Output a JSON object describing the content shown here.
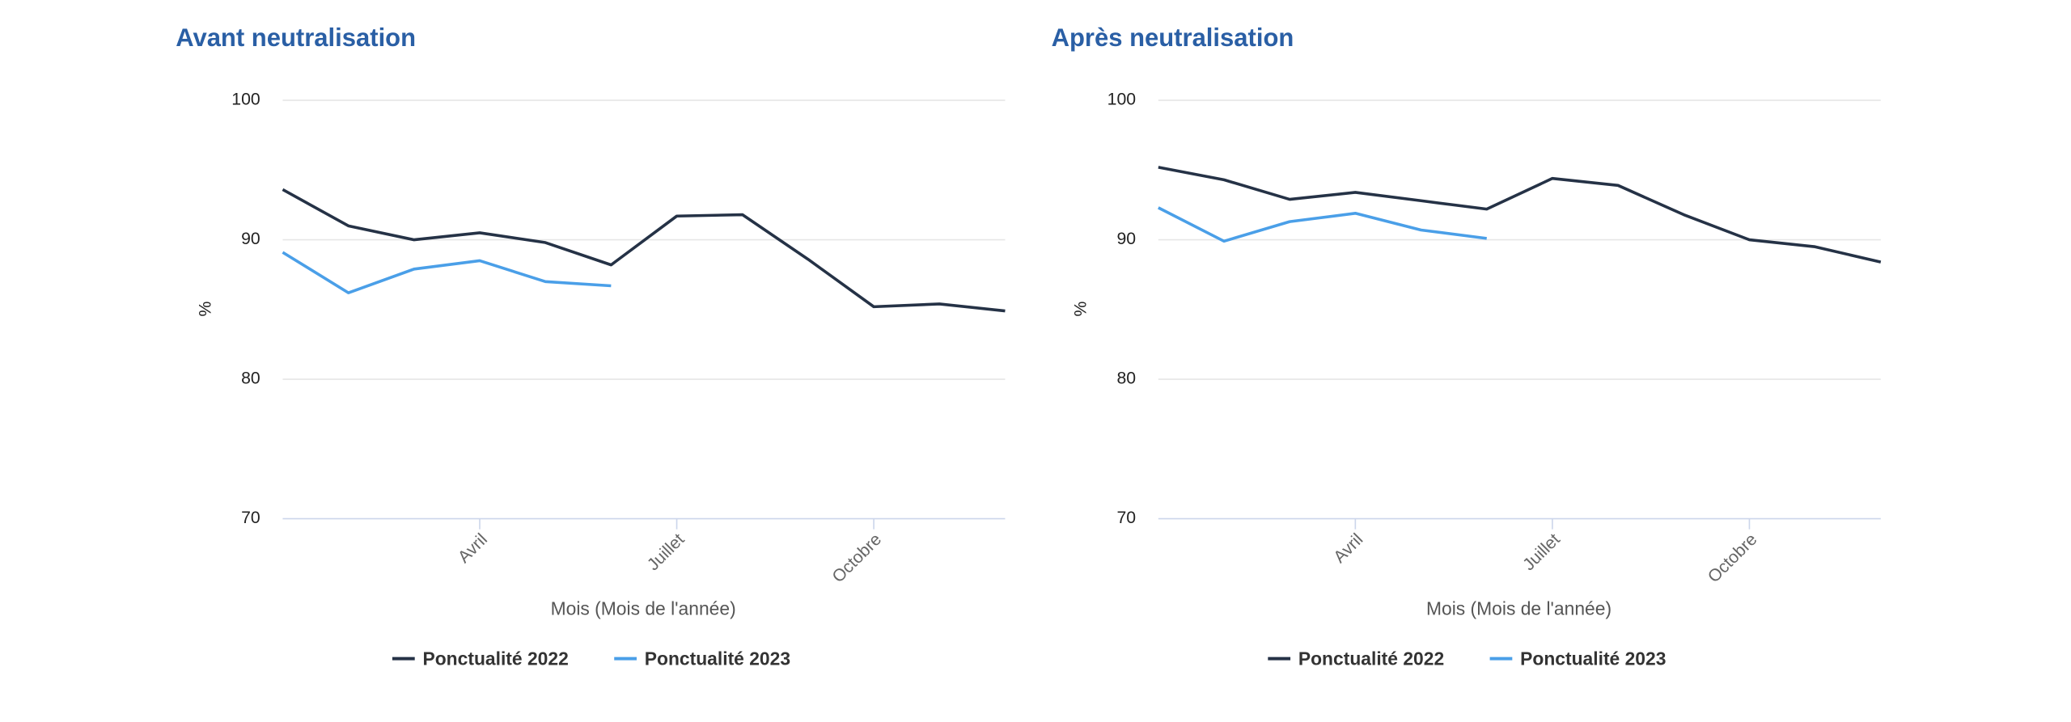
{
  "chart_data": [
    {
      "type": "line",
      "title": "Avant neutralisation",
      "y_label": "%",
      "x_label": "Mois (Mois de l'année)",
      "categories": [
        null,
        null,
        null,
        "Avril",
        null,
        null,
        "Juillet",
        null,
        null,
        "Octobre",
        null,
        null
      ],
      "series": [
        {
          "name": "Ponctualité 2022",
          "color": "#253246",
          "values": [
            93.6,
            91.0,
            90.0,
            90.5,
            89.8,
            88.2,
            91.7,
            91.8,
            88.6,
            85.2,
            85.4,
            84.9
          ]
        },
        {
          "name": "Ponctualité 2023",
          "color": "#4a9fe8",
          "values": [
            89.1,
            86.2,
            87.9,
            88.5,
            87.0,
            86.7,
            null,
            null,
            null,
            null,
            null,
            null
          ]
        }
      ],
      "ylim": [
        70,
        100
      ],
      "yticks": [
        70,
        80,
        90,
        100
      ],
      "grid": true
    },
    {
      "type": "line",
      "title": "Après neutralisation",
      "y_label": "%",
      "x_label": "Mois (Mois de l'année)",
      "categories": [
        null,
        null,
        null,
        "Avril",
        null,
        null,
        "Juillet",
        null,
        null,
        "Octobre",
        null,
        null
      ],
      "series": [
        {
          "name": "Ponctualité 2022",
          "color": "#253246",
          "values": [
            95.2,
            94.3,
            92.9,
            93.4,
            92.8,
            92.2,
            94.4,
            93.9,
            91.8,
            90.0,
            89.5,
            88.4
          ]
        },
        {
          "name": "Ponctualité 2023",
          "color": "#4a9fe8",
          "values": [
            92.3,
            89.9,
            91.3,
            91.9,
            90.7,
            90.1,
            null,
            null,
            null,
            null,
            null,
            null
          ]
        }
      ],
      "ylim": [
        70,
        100
      ],
      "yticks": [
        70,
        80,
        90,
        100
      ],
      "grid": true
    }
  ]
}
